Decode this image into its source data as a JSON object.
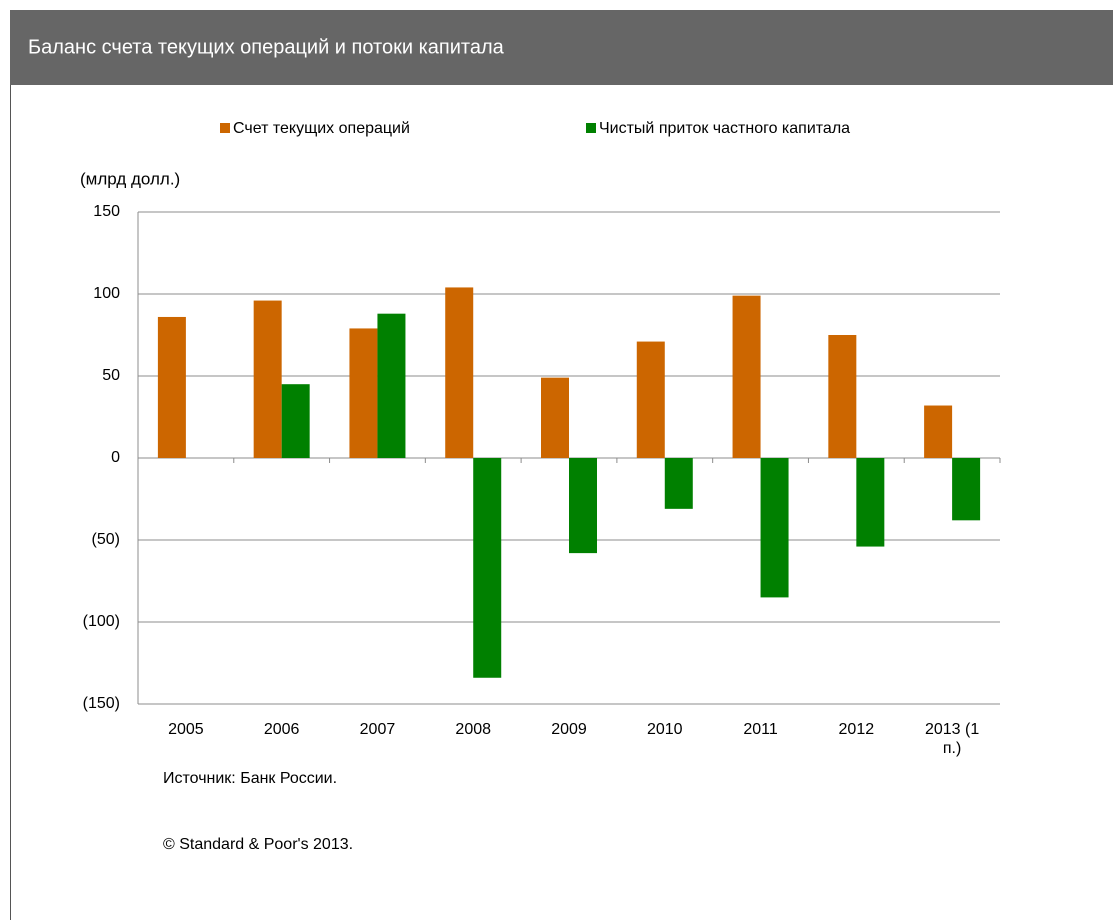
{
  "chart_data": {
    "type": "bar",
    "title": "Баланс счета текущих операций и потоки капитала",
    "y_label": "(млрд долл.)",
    "source": "Источник: Банк России.",
    "copyright": "© Standard & Poor's 2013.",
    "categories": [
      "2005",
      "2006",
      "2007",
      "2008",
      "2009",
      "2010",
      "2011",
      "2012",
      "2013 (1 п.)"
    ],
    "series": [
      {
        "name": "Счет текущих операций",
        "color": "#cc6600",
        "values": [
          86,
          96,
          79,
          104,
          49,
          71,
          99,
          75,
          32
        ]
      },
      {
        "name": "Чистый приток частного капитала",
        "color": "#008000",
        "values": [
          null,
          45,
          88,
          -134,
          -58,
          -31,
          -85,
          -54,
          -38
        ]
      }
    ],
    "ylim": [
      -150,
      150
    ],
    "yticks": [
      {
        "value": -150,
        "label": "(150)"
      },
      {
        "value": -100,
        "label": "(100)"
      },
      {
        "value": -50,
        "label": "(50)"
      },
      0,
      50,
      100,
      150
    ],
    "grid": true
  }
}
